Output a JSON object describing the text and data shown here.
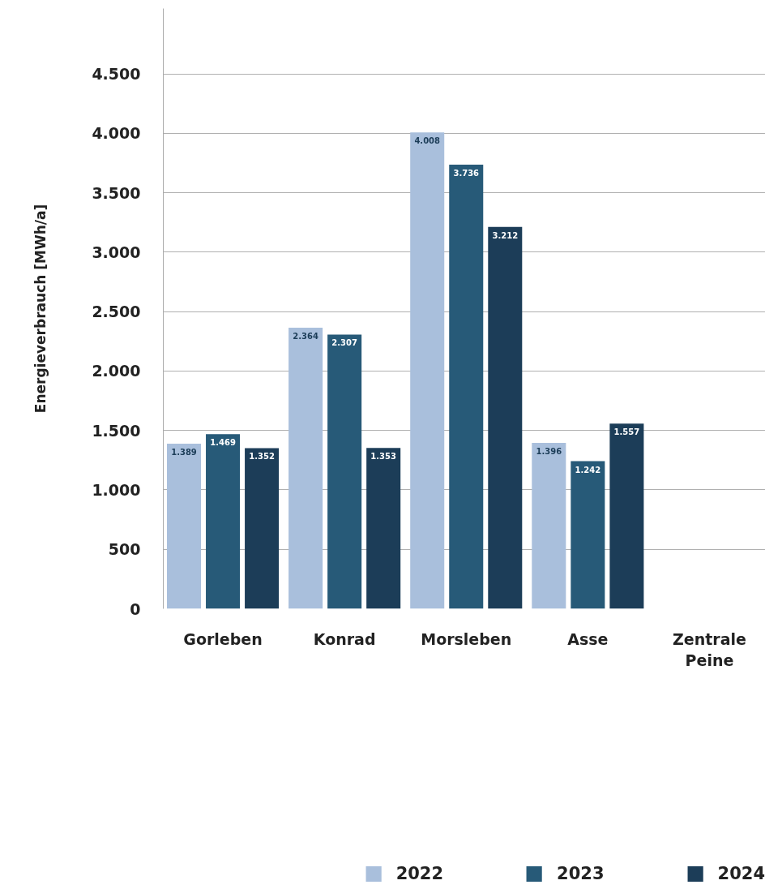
{
  "chart_data": {
    "type": "bar",
    "ylabel": "Energieverbrauch [MWh/a]",
    "categories": [
      "Gorleben",
      "Konrad",
      "Morsleben",
      "Asse",
      "Zentrale\nPeine"
    ],
    "series": [
      {
        "name": "2022",
        "color": "#a9bfdc",
        "values": [
          1389,
          2364,
          4008,
          1396,
          null
        ],
        "value_labels": [
          "1.389",
          "2.364",
          "4.008",
          "1.396",
          null
        ]
      },
      {
        "name": "2023",
        "color": "#275a78",
        "values": [
          1469,
          2307,
          3736,
          1242,
          null
        ],
        "value_labels": [
          "1.469",
          "2.307",
          "3.736",
          "1.242",
          null
        ]
      },
      {
        "name": "2024",
        "color": "#1c3d58",
        "values": [
          1352,
          1353,
          3212,
          1557,
          null
        ],
        "value_labels": [
          "1.352",
          "1.353",
          "3.212",
          "1.557",
          null
        ]
      }
    ],
    "ylim": [
      0,
      5050
    ],
    "yticks": [
      0,
      500,
      {
        "value": 1000,
        "label": "1.000"
      },
      {
        "value": 1500,
        "label": "1.500"
      },
      {
        "value": 2000,
        "label": "2.000"
      },
      {
        "value": 2500,
        "label": "2.500"
      },
      {
        "value": 3000,
        "label": "3.000"
      },
      {
        "value": 3500,
        "label": "3.500"
      },
      {
        "value": 4000,
        "label": "4.000"
      },
      {
        "value": 4500,
        "label": "4.500"
      }
    ],
    "grid": "y",
    "legend": "bottom"
  }
}
